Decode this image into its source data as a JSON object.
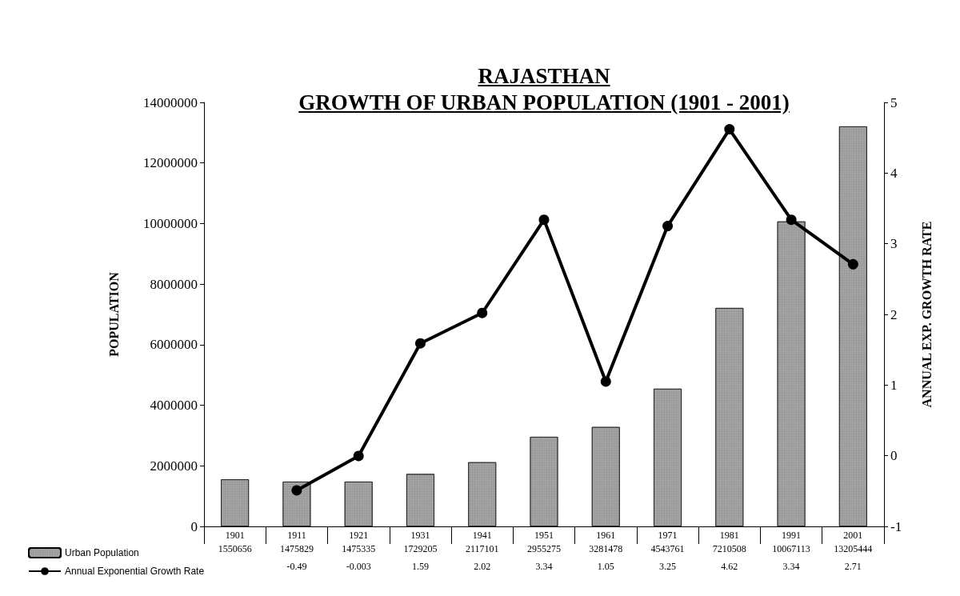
{
  "chart_data": {
    "type": "bar",
    "title": "RAJASTHAN",
    "subtitle": "GROWTH OF URBAN POPULATION (1901 - 2001)",
    "ylabel": "POPULATION",
    "y2label": "ANNUAL EXP. GROWTH RATE",
    "categories": [
      "1901",
      "1911",
      "1921",
      "1931",
      "1941",
      "1951",
      "1961",
      "1971",
      "1981",
      "1991",
      "2001"
    ],
    "series": [
      {
        "name": "Urban Population",
        "color": "#9a9a9a",
        "values": [
          1550656,
          1475829,
          1475335,
          1729205,
          2117101,
          2955275,
          3281478,
          4543761,
          7210508,
          10067113,
          13205444
        ]
      },
      {
        "name": "Annual Exponential Growth Rate",
        "type": "line",
        "axis": "y2",
        "color": "#000000",
        "marker": "circle",
        "values": [
          null,
          -0.49,
          -0.003,
          1.59,
          2.02,
          3.34,
          1.05,
          3.25,
          4.62,
          3.34,
          2.71
        ]
      }
    ],
    "ylim": [
      0,
      14000000
    ],
    "yticks": [
      0,
      2000000,
      4000000,
      6000000,
      8000000,
      10000000,
      12000000,
      14000000
    ],
    "y2lim": [
      -1,
      5
    ],
    "y2ticks": [
      -1,
      0,
      1,
      2,
      3,
      4,
      5
    ],
    "grid": false,
    "legend": "bottom left",
    "data_labels": true
  }
}
